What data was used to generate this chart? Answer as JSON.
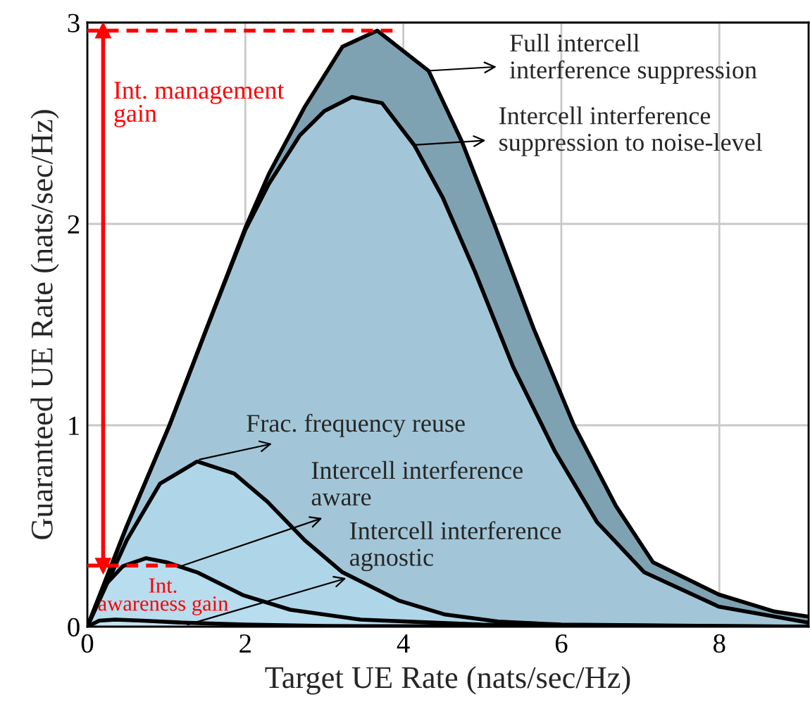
{
  "chart_data": {
    "type": "area",
    "xlabel": "Target UE Rate (nats/sec/Hz)",
    "ylabel": "Guaranteed UE Rate (nats/sec/Hz)",
    "xlim": [
      0,
      9.13
    ],
    "ylim": [
      0,
      3
    ],
    "xticks": [
      0,
      2,
      4,
      6,
      8
    ],
    "yticks": [
      0,
      1,
      2,
      3
    ],
    "grid": true,
    "legend": false,
    "series": [
      {
        "color": "#7fa2b3",
        "x": [
          0,
          0.5,
          1.04,
          1.5,
          2.0,
          2.3,
          2.75,
          3.23,
          3.67,
          4.32,
          4.74,
          5.15,
          5.65,
          6.16,
          6.69,
          7.16,
          7.99,
          8.7,
          9.13
        ],
        "values": [
          0,
          0.5,
          1.0,
          1.47,
          1.98,
          2.25,
          2.58,
          2.88,
          2.96,
          2.76,
          2.41,
          2.0,
          1.48,
          1.0,
          0.6,
          0.32,
          0.16,
          0.075,
          0.05
        ]
      },
      {
        "color": "#a2c6d8",
        "x": [
          0,
          0.5,
          1.04,
          1.5,
          2.0,
          2.3,
          2.69,
          3.0,
          3.35,
          3.73,
          4.14,
          4.5,
          4.91,
          5.39,
          5.92,
          6.45,
          7.05,
          7.99,
          9.13
        ],
        "values": [
          0,
          0.5,
          1.0,
          1.47,
          1.97,
          2.2,
          2.44,
          2.56,
          2.63,
          2.6,
          2.39,
          2.13,
          1.76,
          1.29,
          0.87,
          0.52,
          0.27,
          0.1,
          0.02
        ]
      },
      {
        "color": "#afd6e8",
        "x": [
          0,
          0.5,
          0.92,
          1.39,
          1.86,
          2.28,
          2.75,
          3.23,
          3.94,
          4.53,
          5.2,
          6.0,
          9.13
        ],
        "values": [
          0,
          0.43,
          0.71,
          0.82,
          0.76,
          0.62,
          0.43,
          0.27,
          0.13,
          0.06,
          0.025,
          0.01,
          0
        ]
      },
      {
        "color": "#b7ddee",
        "x": [
          0,
          0.21,
          0.45,
          0.74,
          1.0,
          1.39,
          1.98,
          2.57,
          3.46,
          5.0,
          9.13
        ],
        "values": [
          0,
          0.2,
          0.3,
          0.34,
          0.32,
          0.27,
          0.155,
          0.084,
          0.035,
          0.01,
          0
        ]
      },
      {
        "color": "#c3e4f1",
        "x": [
          0,
          0.15,
          0.35,
          0.7,
          1.2,
          2.0,
          3.0,
          9.13
        ],
        "values": [
          0,
          0.03,
          0.035,
          0.03,
          0.02,
          0.01,
          0.003,
          0
        ]
      },
      {
        "type": "line",
        "color": "#ff0000",
        "marker": "triangle",
        "x": [
          0.2,
          0.2
        ],
        "values": [
          0.303,
          2.96
        ]
      },
      {
        "type": "line",
        "color": "#ff0000",
        "line_style": "dashed",
        "x": [
          0,
          3.9
        ],
        "values": [
          2.96,
          2.96
        ]
      },
      {
        "type": "line",
        "color": "#ff0000",
        "line_style": "dashed",
        "x": [
          0,
          1.17
        ],
        "values": [
          0.303,
          0.303
        ]
      }
    ],
    "annotations": [
      "Full intercell\ninterference suppression",
      "Intercell interference\nsuppression to noise-level",
      {
        "text": "Frac. frequency reuse",
        "x": 1.42,
        "y": 0.83
      },
      {
        "text": "Intercell interference\naware",
        "x": 1.18,
        "y": 0.3
      },
      {
        "text": "Intercell interference\nagnostic",
        "x": 1.27,
        "y": 0.01
      },
      "Int. management\ngain",
      "Int.\nawareness gain"
    ]
  }
}
